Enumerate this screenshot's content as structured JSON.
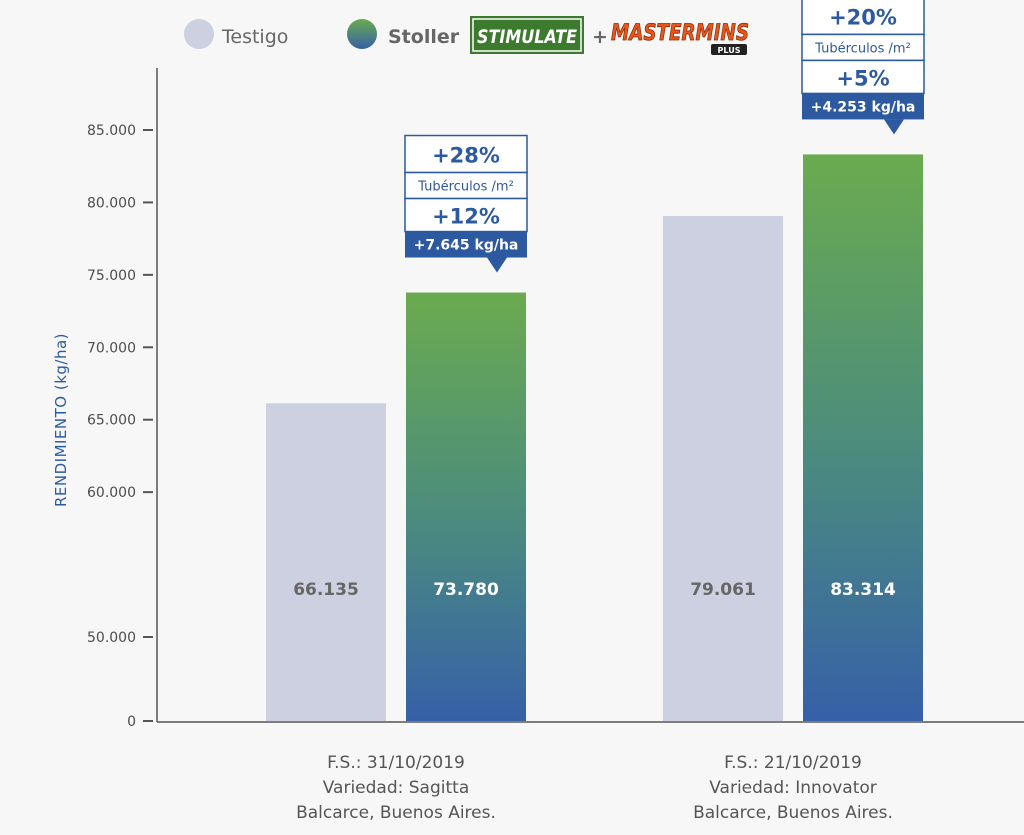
{
  "legend": {
    "testigo": "Testigo",
    "stoller": "Stoller",
    "plus_sign": "+"
  },
  "logos": {
    "stimulate": "STIMULATE",
    "mastermins": "MASTERMINS",
    "mastermins_sub": "PLUS"
  },
  "chart_data": {
    "type": "bar",
    "ylabel": "RENDIMIENTO (kg/ha)",
    "ylim": [
      0,
      88000
    ],
    "yticks": [
      {
        "value": 0,
        "label": "0"
      },
      {
        "value": 50000,
        "label": "50.000"
      },
      {
        "value": 60000,
        "label": "60.000"
      },
      {
        "value": 65000,
        "label": "65.000"
      },
      {
        "value": 70000,
        "label": "70.000"
      },
      {
        "value": 75000,
        "label": "75.000"
      },
      {
        "value": 80000,
        "label": "80.000"
      },
      {
        "value": 85000,
        "label": "85.000"
      }
    ],
    "series": [
      {
        "name": "Testigo",
        "values": [
          66135,
          79061
        ],
        "labels": [
          "66.135",
          "79.061"
        ],
        "color": "#cdd0e0"
      },
      {
        "name": "Stoller STIMULATE + MASTERMINS PLUS",
        "values": [
          73780,
          83314
        ],
        "labels": [
          "73.780",
          "83.314"
        ],
        "color_top": "#6aab4f",
        "color_bottom": "#3660a8"
      }
    ],
    "categories": [
      {
        "lines": [
          "F.S.: 31/10/2019",
          "Variedad: Sagitta",
          "Balcarce, Buenos Aires."
        ]
      },
      {
        "lines": [
          "F.S.: 21/10/2019",
          "Variedad: Innovator",
          "Balcarce, Buenos Aires."
        ]
      }
    ],
    "annotations": [
      {
        "pct_tuberculos": "+28%",
        "tuberculos_label": "Tubérculos /m²",
        "pct_rend": "+12%",
        "diff": "+7.645 kg/ha"
      },
      {
        "pct_tuberculos": "+20%",
        "tuberculos_label": "Tubérculos /m²",
        "pct_rend": "+5%",
        "diff": "+4.253 kg/ha"
      }
    ],
    "grid": false,
    "legend_position": "top"
  }
}
